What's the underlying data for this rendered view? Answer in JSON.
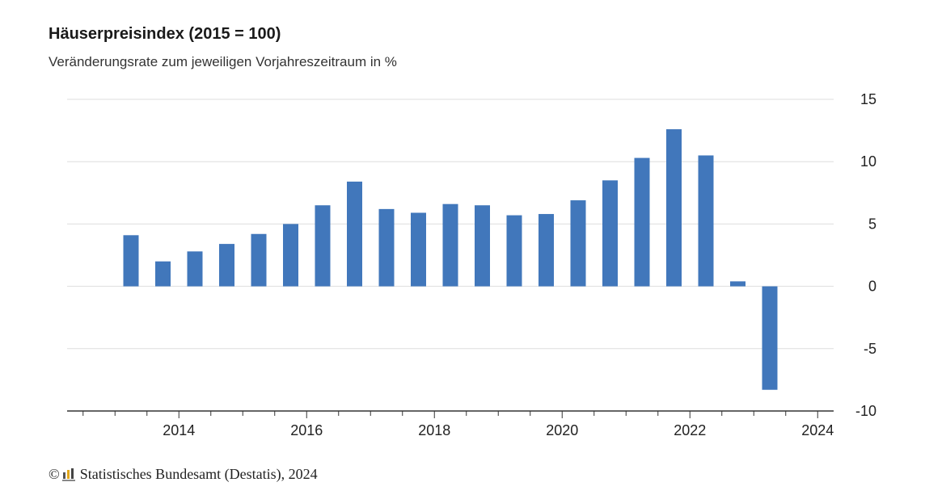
{
  "title": "Häuserpreisindex (2015 = 100)",
  "subtitle": "Veränderungsrate zum jeweiligen Vorjahreszeitraum in %",
  "footer": {
    "copyright_symbol": "©",
    "source": "Statistisches Bundesamt (Destatis), 2024",
    "logo_icon": "destatis-logo-icon"
  },
  "colors": {
    "bar": "#4177bb",
    "grid": "#dddddd",
    "axis": "#333333",
    "logo_bars": [
      "#555555",
      "#e3a81b",
      "#444444"
    ]
  },
  "chart_data": {
    "type": "bar",
    "title": "Häuserpreisindex (2015 = 100)",
    "subtitle": "Veränderungsrate zum jeweiligen Vorjahreszeitraum in %",
    "xlabel": "",
    "ylabel": "",
    "ylim": [
      -10,
      15
    ],
    "yticks": [
      15,
      10,
      5,
      0,
      -5,
      -10
    ],
    "ytick_labels": [
      "15",
      "10",
      "5",
      "0",
      "-5",
      "-10"
    ],
    "y_axis_side": "right",
    "xlim": [
      2012.25,
      2024.25
    ],
    "xticks": [
      2014,
      2016,
      2018,
      2020,
      2022,
      2024
    ],
    "xtick_labels": [
      "2014",
      "2016",
      "2018",
      "2020",
      "2022",
      "2024"
    ],
    "grid": true,
    "legend": "none",
    "series": [
      {
        "x": [
          2013.25,
          2013.75,
          2014.25,
          2014.75,
          2015.25,
          2015.75,
          2016.25,
          2016.75,
          2017.25,
          2017.75,
          2018.25,
          2018.75,
          2019.25,
          2019.75,
          2020.25,
          2020.75,
          2021.25,
          2021.75,
          2022.25,
          2022.75,
          2023.25
        ],
        "values": [
          4.1,
          2.0,
          2.8,
          3.4,
          4.2,
          5.0,
          6.5,
          8.4,
          6.2,
          5.9,
          6.6,
          6.5,
          5.7,
          5.8,
          6.9,
          8.5,
          10.3,
          12.6,
          10.5,
          0.4,
          -8.3
        ]
      }
    ]
  }
}
